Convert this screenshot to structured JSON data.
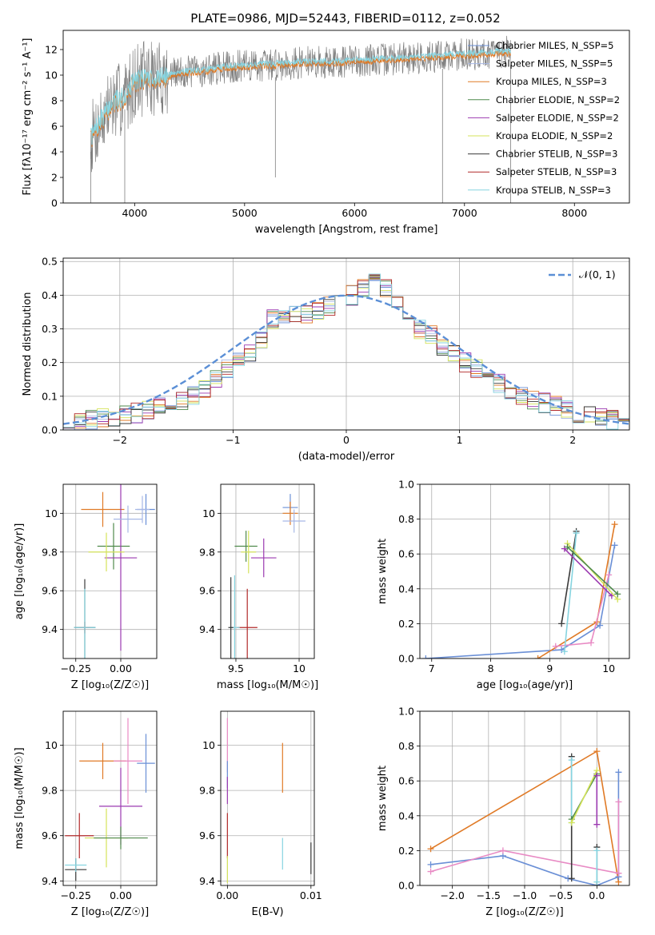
{
  "figure": {
    "title": "PLATE=0986, MJD=52443, FIBERID=0112, z=0.052"
  },
  "palette": {
    "series_colors": [
      "#6a8fd6",
      "#a7b8e6",
      "#e07a26",
      "#4f8a4c",
      "#9b3ab0",
      "#d4e35a",
      "#3a3a3a",
      "#b22a2a",
      "#86d4e0"
    ],
    "spectrum_color": "#7f7f7f",
    "grid": "#b0b0b0",
    "normal_curve": "#5b8fd6"
  },
  "chart_data": [
    {
      "id": "spectrum",
      "type": "line",
      "xlabel": "wavelength [Angstrom, rest frame]",
      "ylabel": "Flux [fλ10⁻¹⁷ erg cm⁻² s⁻¹ A⁻¹]",
      "xlim": [
        3350,
        8500
      ],
      "ylim": [
        0,
        13.5
      ],
      "xticks": [
        4000,
        5000,
        6000,
        7000,
        8000
      ],
      "yticks": [
        0,
        2,
        4,
        6,
        8,
        10,
        12
      ],
      "grid": false,
      "legend": "right",
      "legend_entries": [
        "Chabrier MILES, N_SSP=5",
        "Salpeter MILES, N_SSP=5",
        "Kroupa MILES, N_SSP=3",
        "Chabrier ELODIE, N_SSP=2",
        "Salpeter ELODIE, N_SSP=2",
        "Kroupa ELODIE, N_SSP=2",
        "Chabrier STELIB, N_SSP=3",
        "Salpeter STELIB, N_SSP=3",
        "Kroupa STELIB, N_SSP=3"
      ],
      "observed_envelope": {
        "x": [
          3600,
          3700,
          3800,
          3900,
          4000,
          4100,
          4200,
          4300,
          4400,
          4600,
          4800,
          5000,
          5200,
          5400,
          5600,
          5800,
          6000,
          6200,
          6400,
          6600,
          6800,
          7000,
          7200,
          7400
        ],
        "y": [
          5.0,
          6.5,
          7.8,
          8.2,
          9.5,
          9.8,
          9.7,
          9.9,
          10.2,
          10.3,
          10.6,
          10.7,
          10.8,
          10.9,
          11.0,
          11.0,
          11.1,
          11.2,
          11.3,
          11.4,
          11.5,
          11.6,
          11.7,
          11.8
        ]
      },
      "annotated_dips": [
        {
          "x": 3600,
          "y": 0.0
        },
        {
          "x": 3910,
          "y": 0.0
        },
        {
          "x": 5280,
          "y": 2.0
        },
        {
          "x": 6800,
          "y": 0.0
        },
        {
          "x": 7420,
          "y": 0.0
        }
      ]
    },
    {
      "id": "residuals",
      "type": "line",
      "xlabel": "(data-model)/error",
      "ylabel": "Normed distribution",
      "xlim": [
        -2.5,
        2.5
      ],
      "ylim": [
        0,
        0.51
      ],
      "xticks": [
        -2,
        -1,
        0,
        1,
        2
      ],
      "yticks": [
        0.0,
        0.1,
        0.2,
        0.3,
        0.4,
        0.5
      ],
      "grid": true,
      "legend": "top-right",
      "normal_label": "𝒩(0, 1)",
      "bin_edges_start": -2.5,
      "bin_width": 0.1,
      "histogram_base": [
        0.02,
        0.025,
        0.03,
        0.035,
        0.04,
        0.045,
        0.05,
        0.06,
        0.07,
        0.08,
        0.09,
        0.1,
        0.12,
        0.15,
        0.18,
        0.2,
        0.23,
        0.27,
        0.33,
        0.34,
        0.34,
        0.34,
        0.35,
        0.37,
        0.39,
        0.4,
        0.42,
        0.45,
        0.42,
        0.38,
        0.33,
        0.3,
        0.28,
        0.25,
        0.23,
        0.2,
        0.18,
        0.16,
        0.14,
        0.12,
        0.1,
        0.09,
        0.08,
        0.07,
        0.06,
        0.05,
        0.045,
        0.04,
        0.03,
        0.025
      ]
    },
    {
      "id": "age-vs-Z",
      "type": "scatter",
      "xlabel": "Z [log₁₀(Z/Z☉)]",
      "ylabel": "age  [log₁₀(age/yr)]",
      "xlim": [
        -0.32,
        0.2
      ],
      "ylim": [
        9.25,
        10.15
      ],
      "xticks": [
        -0.25,
        0.0
      ],
      "xticklabels": [
        "−0.25",
        "0.00"
      ],
      "yticks": [
        9.4,
        9.6,
        9.8,
        10.0
      ],
      "grid": true,
      "points": [
        {
          "x": 0.14,
          "y": 10.02,
          "xerr": 0.05,
          "yerr": 0.08,
          "c": 0
        },
        {
          "x": 0.12,
          "y": 10.02,
          "xerr": 0.04,
          "yerr": 0.07,
          "c": 1
        },
        {
          "x": -0.1,
          "y": 10.02,
          "xerr": 0.12,
          "yerr": 0.09,
          "c": 2
        },
        {
          "x": -0.04,
          "y": 9.83,
          "xerr": 0.09,
          "yerr": 0.12,
          "c": 3
        },
        {
          "x": 0.0,
          "y": 9.77,
          "xerr": 0.09,
          "yerr": 0.48,
          "c": 4
        },
        {
          "x": -0.08,
          "y": 9.8,
          "xerr": 0.1,
          "yerr": 0.1,
          "c": 5
        },
        {
          "x": -0.2,
          "y": 9.41,
          "xerr": 0.06,
          "yerr": 0.25,
          "c": 6
        },
        {
          "x": -0.2,
          "y": 9.41,
          "xerr": 0.03,
          "yerr": 0.03,
          "c": 7
        },
        {
          "x": -0.2,
          "y": 9.41,
          "xerr": 0.06,
          "yerr": 0.2,
          "c": 8
        },
        {
          "x": 0.04,
          "y": 9.97,
          "xerr": 0.08,
          "yerr": 0.07,
          "c": 1
        }
      ]
    },
    {
      "id": "age-vs-mass",
      "type": "scatter",
      "xlabel": "mass [log₁₀(M/M☉)]",
      "ylabel": "",
      "xlim": [
        9.38,
        10.12
      ],
      "ylim": [
        9.25,
        10.15
      ],
      "xticks": [
        9.5,
        10.0
      ],
      "yticks": [
        9.4,
        9.6,
        9.8,
        10.0
      ],
      "grid": true,
      "points": [
        {
          "x": 9.93,
          "y": 10.03,
          "xerr": 0.06,
          "yerr": 0.07,
          "c": 0
        },
        {
          "x": 9.93,
          "y": 10.0,
          "xerr": 0.06,
          "yerr": 0.06,
          "c": 2
        },
        {
          "x": 9.96,
          "y": 9.96,
          "xerr": 0.09,
          "yerr": 0.06,
          "c": 1
        },
        {
          "x": 9.58,
          "y": 9.83,
          "xerr": 0.09,
          "yerr": 0.08,
          "c": 3
        },
        {
          "x": 9.6,
          "y": 9.8,
          "xerr": 0.06,
          "yerr": 0.11,
          "c": 5
        },
        {
          "x": 9.72,
          "y": 9.77,
          "xerr": 0.1,
          "yerr": 0.1,
          "c": 4
        },
        {
          "x": 9.59,
          "y": 9.41,
          "xerr": 0.08,
          "yerr": 0.2,
          "c": 7
        },
        {
          "x": 9.49,
          "y": 9.41,
          "xerr": 0.04,
          "yerr": 0.27,
          "c": 8
        },
        {
          "x": 9.46,
          "y": 9.41,
          "xerr": 0.02,
          "yerr": 0.26,
          "c": 6
        }
      ]
    },
    {
      "id": "mass-weight-vs-age",
      "type": "line",
      "xlabel": "age  [log₁₀(age/yr)]",
      "ylabel": "mass weight",
      "xlim": [
        6.8,
        10.35
      ],
      "ylim": [
        0,
        1.0
      ],
      "xticks": [
        7,
        8,
        9,
        10
      ],
      "yticks": [
        0.0,
        0.2,
        0.4,
        0.6,
        0.8,
        1.0
      ],
      "grid": true,
      "series": [
        {
          "c": 0,
          "x": [
            6.9,
            9.2,
            9.85,
            10.1
          ],
          "y": [
            0.0,
            0.05,
            0.19,
            0.65
          ]
        },
        {
          "c": 2,
          "x": [
            8.8,
            9.8,
            10.1
          ],
          "y": [
            0.0,
            0.21,
            0.77
          ]
        },
        {
          "c": 9,
          "x": [
            9.1,
            9.7,
            10.0
          ],
          "y": [
            0.07,
            0.09,
            0.48
          ]
        },
        {
          "c": 6,
          "x": [
            9.2,
            9.45
          ],
          "y": [
            0.2,
            0.73
          ]
        },
        {
          "c": 8,
          "x": [
            9.25,
            9.45
          ],
          "y": [
            0.04,
            0.72
          ]
        },
        {
          "c": 4,
          "x": [
            9.25,
            10.05
          ],
          "y": [
            0.63,
            0.36
          ]
        },
        {
          "c": 5,
          "x": [
            9.3,
            10.15
          ],
          "y": [
            0.66,
            0.34
          ]
        },
        {
          "c": 3,
          "x": [
            9.3,
            10.15
          ],
          "y": [
            0.64,
            0.37
          ]
        }
      ]
    },
    {
      "id": "mass-vs-Z",
      "type": "scatter",
      "xlabel": "Z [log₁₀(Z/Z☉)]",
      "ylabel": "mass [log₁₀(M/M☉)]",
      "xlim": [
        -0.32,
        0.2
      ],
      "ylim": [
        9.38,
        10.15
      ],
      "xticks": [
        -0.25,
        0.0
      ],
      "xticklabels": [
        "−0.25",
        "0.00"
      ],
      "yticks": [
        9.4,
        9.6,
        9.8,
        10.0
      ],
      "grid": true,
      "points": [
        {
          "x": -0.1,
          "y": 9.93,
          "xerr": 0.13,
          "yerr": 0.08,
          "c": 2
        },
        {
          "x": 0.14,
          "y": 9.92,
          "xerr": 0.05,
          "yerr": 0.13,
          "c": 0
        },
        {
          "x": 0.04,
          "y": 9.93,
          "xerr": 0.08,
          "yerr": 0.19,
          "c": 9
        },
        {
          "x": 0.0,
          "y": 9.73,
          "xerr": 0.12,
          "yerr": 0.17,
          "c": 4
        },
        {
          "x": -0.08,
          "y": 9.59,
          "xerr": 0.12,
          "yerr": 0.13,
          "c": 5
        },
        {
          "x": 0.0,
          "y": 9.59,
          "xerr": 0.15,
          "yerr": 0.05,
          "c": 3
        },
        {
          "x": -0.23,
          "y": 9.6,
          "xerr": 0.08,
          "yerr": 0.1,
          "c": 7
        },
        {
          "x": -0.25,
          "y": 9.45,
          "xerr": 0.06,
          "yerr": 0.05,
          "c": 6
        },
        {
          "x": -0.25,
          "y": 9.47,
          "xerr": 0.06,
          "yerr": 0.03,
          "c": 8
        }
      ]
    },
    {
      "id": "mass-vs-EBV",
      "type": "scatter",
      "xlabel": "E(B-V)",
      "ylabel": "",
      "xlim": [
        -0.0008,
        0.0104
      ],
      "ylim": [
        9.38,
        10.15
      ],
      "xticks": [
        0.0,
        0.01
      ],
      "xticklabels": [
        "0.00",
        "0.01"
      ],
      "yticks": [
        9.4,
        9.6,
        9.8,
        10.0
      ],
      "grid": true,
      "points": [
        {
          "x": 0.0,
          "y": 10.0,
          "xerr": 0,
          "yerr": 0.12,
          "c": 9
        },
        {
          "x": 0.0,
          "y": 9.87,
          "xerr": 0,
          "yerr": 0.06,
          "c": 0
        },
        {
          "x": 0.0,
          "y": 9.8,
          "xerr": 0,
          "yerr": 0.06,
          "c": 4
        },
        {
          "x": 0.0,
          "y": 9.6,
          "xerr": 0,
          "yerr": 0.1,
          "c": 7
        },
        {
          "x": 0.0,
          "y": 9.45,
          "xerr": 0,
          "yerr": 0.06,
          "c": 5
        },
        {
          "x": 0.0066,
          "y": 9.9,
          "xerr": 0,
          "yerr": 0.11,
          "c": 2
        },
        {
          "x": 0.0066,
          "y": 9.52,
          "xerr": 0,
          "yerr": 0.07,
          "c": 8
        },
        {
          "x": 0.01,
          "y": 9.5,
          "xerr": 0,
          "yerr": 0.07,
          "c": 6
        }
      ]
    },
    {
      "id": "mass-weight-vs-Z",
      "type": "line",
      "xlabel": "Z [log₁₀(Z/Z☉)]",
      "ylabel": "mass weight",
      "xlim": [
        -2.45,
        0.45
      ],
      "ylim": [
        0,
        1.0
      ],
      "xticks": [
        -2.0,
        -1.5,
        -1.0,
        -0.5,
        0.0
      ],
      "xticklabels": [
        "−2.0",
        "−1.5",
        "−1.0",
        "−0.5",
        "0.0"
      ],
      "yticks": [
        0.0,
        0.2,
        0.4,
        0.6,
        0.8,
        1.0
      ],
      "grid": true,
      "series": [
        {
          "c": 2,
          "x": [
            -2.3,
            0.0,
            0.3
          ],
          "y": [
            0.21,
            0.77,
            0.02
          ]
        },
        {
          "c": 0,
          "x": [
            -2.3,
            -1.3,
            -0.4,
            0.0,
            0.3
          ],
          "y": [
            0.12,
            0.17,
            0.04,
            0.0,
            0.05
          ]
        },
        {
          "c": 9,
          "x": [
            -2.3,
            -1.3,
            0.3
          ],
          "y": [
            0.08,
            0.2,
            0.07
          ]
        },
        {
          "c": 0,
          "x": [
            0.3,
            0.3
          ],
          "y": [
            0.65,
            0.05
          ]
        },
        {
          "c": 9,
          "x": [
            0.3,
            0.3
          ],
          "y": [
            0.48,
            0.07
          ]
        },
        {
          "c": 6,
          "x": [
            -0.35,
            -0.35
          ],
          "y": [
            0.74,
            0.04
          ]
        },
        {
          "c": 8,
          "x": [
            -0.35,
            -0.35
          ],
          "y": [
            0.72,
            0.36
          ]
        },
        {
          "c": 3,
          "x": [
            -0.35,
            0.0
          ],
          "y": [
            0.38,
            0.64
          ]
        },
        {
          "c": 5,
          "x": [
            -0.35,
            0.0
          ],
          "y": [
            0.36,
            0.66
          ]
        },
        {
          "c": 4,
          "x": [
            0.0,
            0.0
          ],
          "y": [
            0.63,
            0.35
          ]
        },
        {
          "c": 6,
          "x": [
            0.0,
            0.0
          ],
          "y": [
            0.22,
            0.0
          ]
        },
        {
          "c": 8,
          "x": [
            0.0,
            0.0
          ],
          "y": [
            0.2,
            0.02
          ]
        }
      ]
    }
  ]
}
